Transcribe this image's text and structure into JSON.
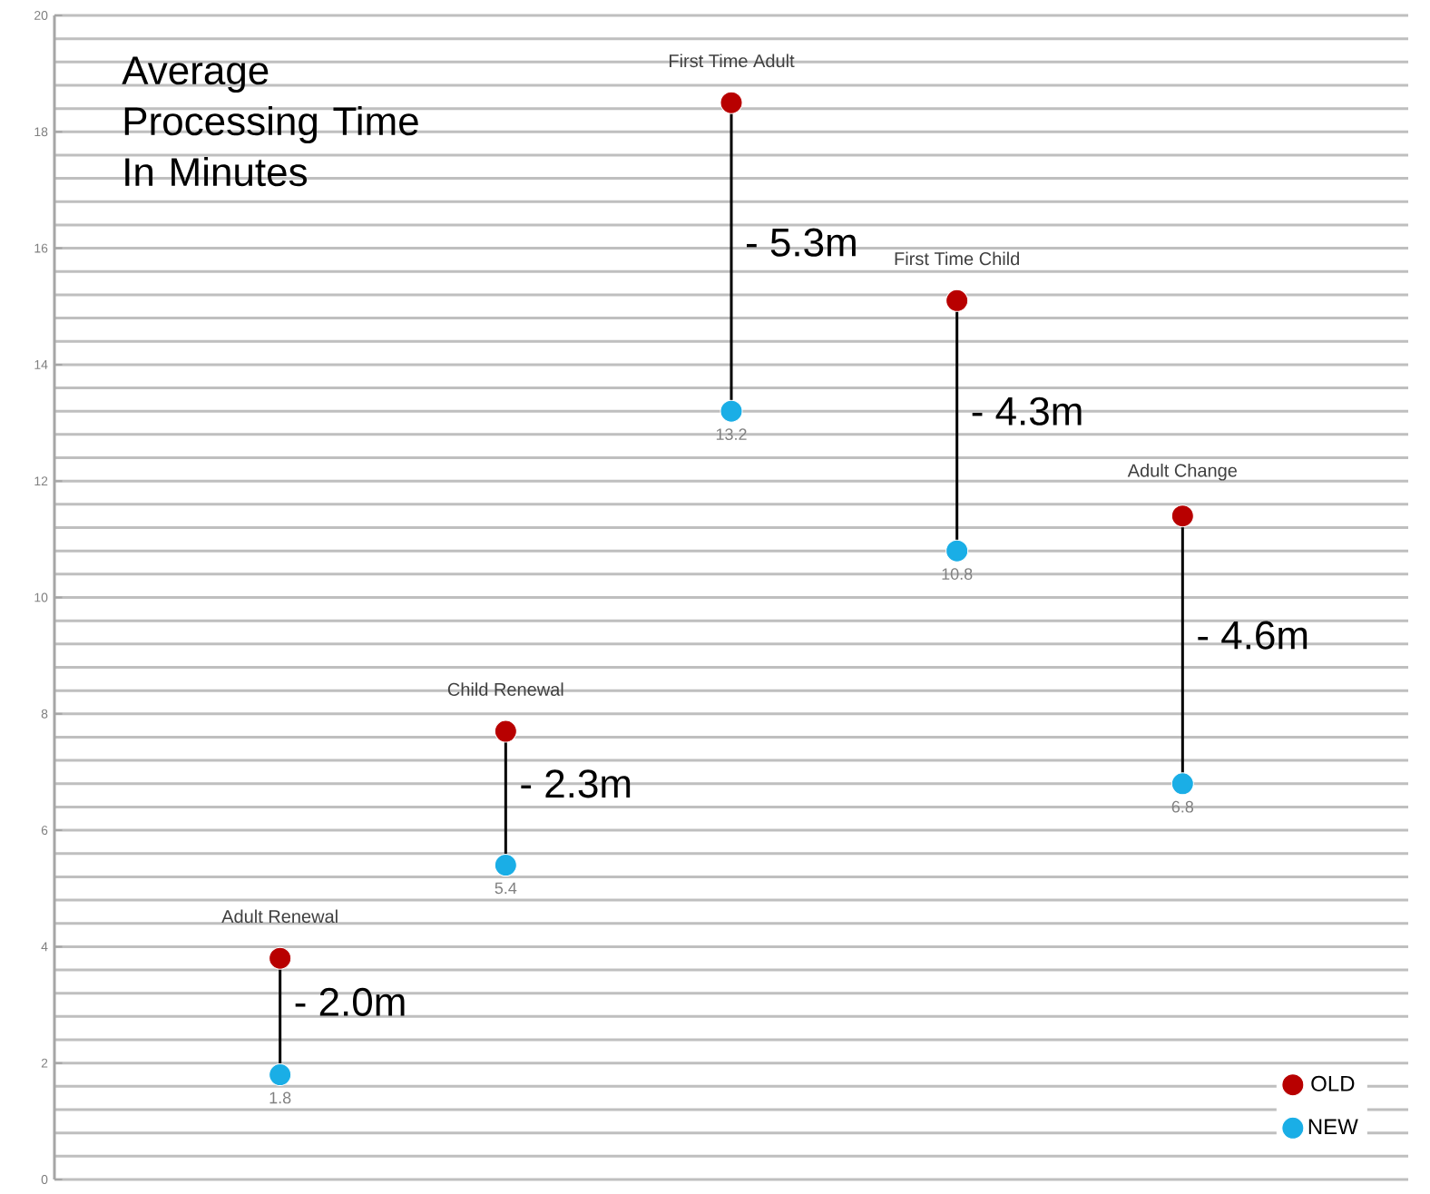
{
  "chart_data": {
    "type": "scatter",
    "title": "Average Processing Time In Minutes",
    "categories": [
      "Adult Renewal",
      "Child Renewal",
      "First Time Adult",
      "First Time Child",
      "Adult Change"
    ],
    "series": [
      {
        "name": "OLD",
        "color": "#b80000",
        "values": [
          3.8,
          7.7,
          18.5,
          15.1,
          11.4
        ]
      },
      {
        "name": "NEW",
        "color": "#1aaee6",
        "values": [
          1.8,
          5.4,
          13.2,
          10.8,
          6.8
        ],
        "value_labels": [
          "1.8",
          "5.4",
          "13.2",
          "10.8",
          "6.8"
        ]
      }
    ],
    "annotations": [
      "- 2.0m",
      "- 2.3m",
      "- 5.3m",
      "- 4.3m",
      "- 4.6m"
    ],
    "ylim": [
      0,
      20
    ],
    "yticks": [
      0,
      2,
      4,
      6,
      8,
      10,
      12,
      14,
      16,
      18,
      20
    ],
    "grid": "y",
    "legend": "bottom right"
  }
}
